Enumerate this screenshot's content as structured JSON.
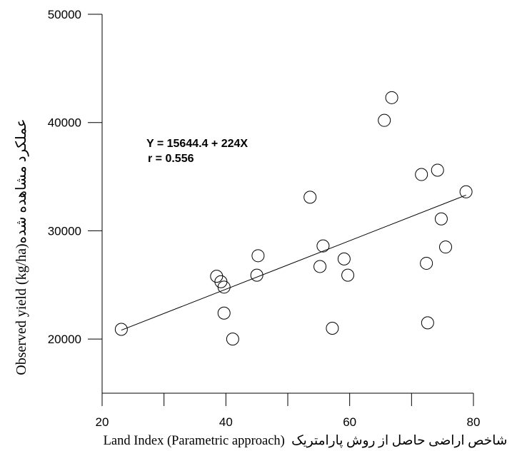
{
  "chart_data": {
    "type": "scatter",
    "xlabel": "Land Index (Parametric approach)  شاخص اراضی حاصل از روش پارامتریک",
    "ylabel": "Observed yield (kg/ha)عملکرد مشاهده شده",
    "xlim": [
      20,
      80
    ],
    "ylim": [
      15000,
      50000
    ],
    "xticks": [
      20,
      40,
      60,
      80
    ],
    "xticks_minor": [
      30,
      50,
      70
    ],
    "yticks": [
      20000,
      30000,
      40000,
      50000
    ],
    "grid": false,
    "legend": "none",
    "marker": "open-circle",
    "series": [
      {
        "x": [
          23.1,
          38.5,
          39.2,
          39.7,
          39.7,
          41.1,
          45.0,
          45.2,
          53.6,
          55.2,
          55.7,
          57.2,
          59.1,
          59.7,
          65.6,
          66.8,
          71.6,
          72.4,
          72.6,
          74.2,
          74.8,
          75.5,
          78.8
        ],
        "y": [
          20900,
          25800,
          25300,
          24800,
          22400,
          20000,
          25900,
          27700,
          33100,
          26700,
          28600,
          21000,
          27400,
          25900,
          40200,
          42300,
          35200,
          27000,
          21500,
          35600,
          31100,
          28500,
          33600
        ]
      }
    ],
    "trendline": {
      "type": "linear",
      "intercept": 15644.4,
      "slope": 224,
      "r": 0.556
    },
    "annotations": [
      {
        "text": "Y = 15644.4 + 224X"
      },
      {
        "text": "r = 0.556"
      }
    ],
    "colors": {
      "marker": "#000000",
      "line": "#000000",
      "axes": "#000000",
      "background": "#ffffff"
    }
  }
}
